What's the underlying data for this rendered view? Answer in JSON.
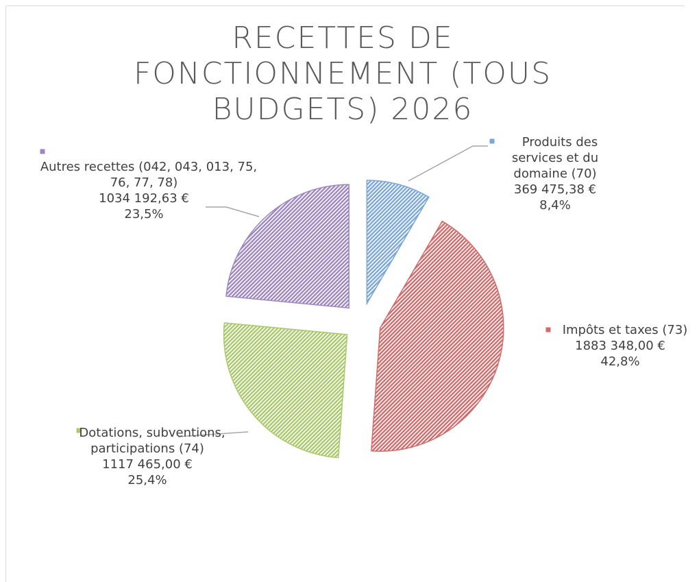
{
  "chart_data": {
    "type": "pie",
    "title": "RECETTES DE FONCTIONNEMENT (TOUS BUDGETS) 2026",
    "categories": [
      "Produits des services et du domaine (70)",
      "Impôts et taxes (73)",
      "Dotations, subventions, participations (74)",
      "Autres recettes (042, 043, 013, 75, 76, 77, 78)"
    ],
    "values": [
      369475.38,
      1883348.0,
      1117465.0,
      1034192.63
    ],
    "value_labels": [
      "369 475,38 €",
      "1883 348,00 €",
      "1117 465,00 €",
      "1034 192,63 €"
    ],
    "percentages": [
      8.4,
      42.8,
      25.4,
      23.5
    ],
    "percentage_labels": [
      "8,4%",
      "42,8%",
      "25,4%",
      "23,5%"
    ],
    "colors": [
      "#7ba7dc",
      "#d46a6a",
      "#a9c96a",
      "#9d86c2"
    ]
  }
}
